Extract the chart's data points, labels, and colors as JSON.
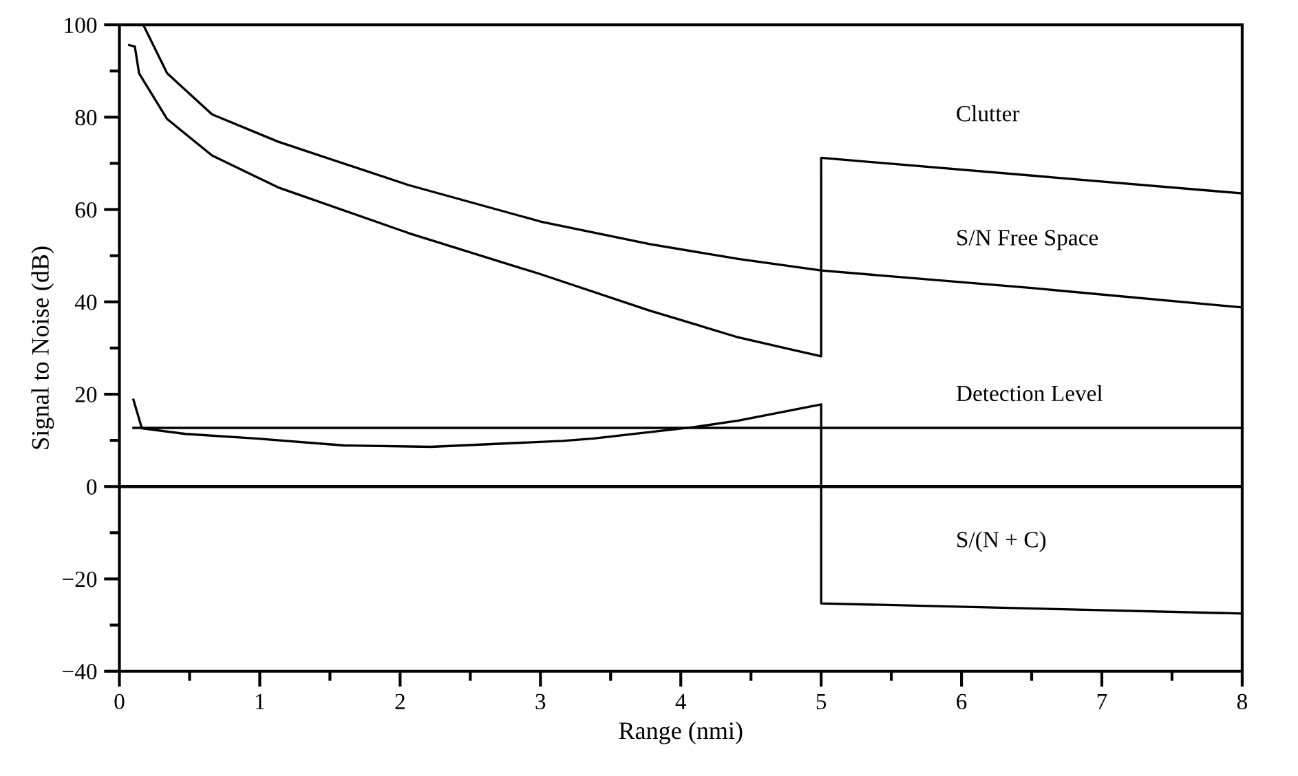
{
  "chart_data": {
    "type": "line",
    "xlabel": "Range (nmi)",
    "ylabel": "Signal to Noise (dB)",
    "xlim": [
      0,
      8
    ],
    "ylim": [
      -40,
      100
    ],
    "xticks": [
      0,
      {
        "value": 0.5,
        "label": null
      },
      1,
      {
        "value": 1.5,
        "label": null
      },
      2,
      {
        "value": 2.5,
        "label": null
      },
      3,
      {
        "value": 3.5,
        "label": null
      },
      4,
      {
        "value": 4.5,
        "label": null
      },
      5,
      {
        "value": 5.5,
        "label": null
      },
      6,
      {
        "value": 6.5,
        "label": null
      },
      7,
      {
        "value": 7.5,
        "label": null
      },
      8
    ],
    "yticks": [
      {
        "value": -40,
        "label": "−40"
      },
      {
        "value": -30,
        "label": null
      },
      {
        "value": -20,
        "label": "−20"
      },
      {
        "value": -10,
        "label": null
      },
      0,
      {
        "value": 10,
        "label": null
      },
      20,
      {
        "value": 30,
        "label": null
      },
      40,
      {
        "value": 50,
        "label": null
      },
      60,
      {
        "value": 70,
        "label": null
      },
      80,
      {
        "value": 90,
        "label": null
      },
      100
    ],
    "grid": false,
    "legend": false,
    "marker": "none",
    "line_style": "solid",
    "series": [
      {
        "name": "S/N Free Space",
        "color": "#000000",
        "x": [
          0.17,
          0.34,
          0.66,
          1.13,
          2.06,
          3.0,
          3.78,
          4.41,
          5.0,
          6.5,
          8.0
        ],
        "values": [
          100,
          89.5,
          80.6,
          74.7,
          65.3,
          57.4,
          52.5,
          49.3,
          46.8,
          43.0,
          38.8
        ]
      },
      {
        "name": "Clutter",
        "color": "#000000",
        "x": [
          0.07,
          0.11,
          0.14,
          0.34,
          0.66,
          1.13,
          2.06,
          3.0,
          3.78,
          4.41,
          5.0,
          5.0,
          8.0
        ],
        "values": [
          95.6,
          95.3,
          89.5,
          79.6,
          71.7,
          64.8,
          54.9,
          46.0,
          38.1,
          32.3,
          28.2,
          71.2,
          63.5
        ]
      },
      {
        "name": "S/(N + C)",
        "color": "#000000",
        "x": [
          0.1,
          0.16,
          0.47,
          0.97,
          1.6,
          2.22,
          3.16,
          3.38,
          4.1,
          4.41,
          5.0,
          5.0,
          8.0
        ],
        "values": [
          18.8,
          12.6,
          11.4,
          10.4,
          8.9,
          8.6,
          9.9,
          10.4,
          12.9,
          14.3,
          17.8,
          -25.3,
          -27.5
        ]
      },
      {
        "name": "Detection Level",
        "color": "#000000",
        "x": [
          0.1,
          8.0
        ],
        "values": [
          12.7,
          12.7
        ]
      }
    ],
    "ref_lines": [
      {
        "axis": "y",
        "value": 0,
        "color": "#000000"
      }
    ]
  }
}
